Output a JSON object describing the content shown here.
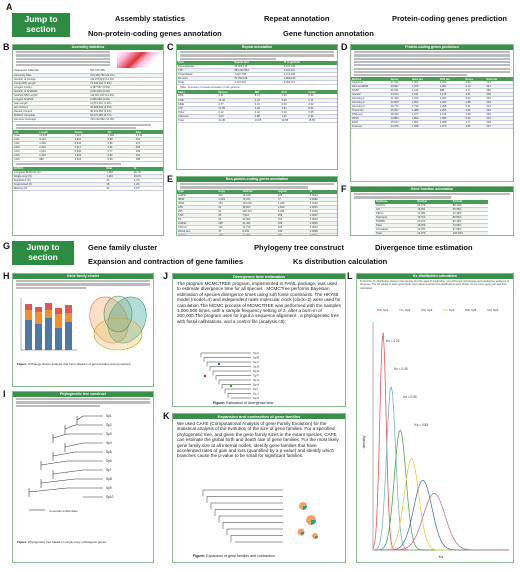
{
  "labels": {
    "A": "A",
    "B": "B",
    "C": "C",
    "D": "D",
    "E": "E",
    "F": "F",
    "G": "G",
    "H": "H",
    "I": "I",
    "J": "J",
    "K": "K",
    "L": "L"
  },
  "jump1": "Jump to section",
  "jump2": "Jump to section",
  "nav1": {
    "assembly": "Assembly statistics",
    "repeat": "Repeat annotation",
    "protein": "Protein-coding genes prediction",
    "noncoding": "Non-protein-coding genes annotation",
    "function": "Gene function annotation"
  },
  "nav2": {
    "cluster": "Gene family cluster",
    "phylo": "Phylogeny tree construct",
    "divergence": "Divergence time estimation",
    "expansion": "Expansion and contraction of gene families",
    "ks": "Ks distribution calculation"
  },
  "colors": {
    "green": "#2e8b43",
    "header": "#3a8f4a",
    "border": "#8ab98f"
  },
  "B": {
    "title": "Assembly statistics",
    "rows": [
      [
        "Sequenced Data Size",
        "931,576,465"
      ],
      [
        "Assembly Rate",
        "215,408,750 (23.1%)"
      ],
      [
        "Number of Contigs",
        "112,975,600 (12.1%)"
      ],
      [
        "Contig N50 Length",
        "72,530,010 (7.8%)"
      ],
      [
        "Longest Contig",
        "4,187,567 (0.5%)"
      ],
      [
        "Number of Scaffolds",
        "2,061,823 (0.2%)"
      ],
      [
        "Scaffold N50 Length",
        "113,467,220 (12.2%)"
      ],
      [
        "Longest Scaffold",
        "2,095,080 (0.2%)"
      ],
      [
        "Gap Length",
        "11,574,210 (1.2%)"
      ],
      [
        "GC Content",
        "32,986,539 (3.5%)"
      ],
      [
        "Repeat Content",
        "36,101,850 (3.9%)"
      ],
      [
        "BUSCO Complete",
        "81,070,080 (8.7%)"
      ],
      [
        "Genome Coverage",
        "130,120,590 (14.0%)"
      ]
    ],
    "t2": [
      [
        "Total",
        "13,958",
        "7,321",
        "1,184",
        "3,512"
      ],
      [
        "Chr1",
        "3,127",
        "4,611",
        "0.98",
        "412"
      ],
      [
        "Chr2",
        "1,890",
        "8,344",
        "0.86",
        "347"
      ],
      [
        "Chr3",
        "2,201",
        "6,117",
        "0.91",
        "298"
      ],
      [
        "Chr4",
        "1,544",
        "5,902",
        "0.77",
        "265"
      ],
      [
        "Chr5",
        "1,310",
        "7,023",
        "0.82",
        "231"
      ],
      [
        "Chr6",
        "980",
        "3,614",
        "0.69",
        "188"
      ]
    ],
    "t3": [
      [
        "Complete BUSCOs (C)",
        "1,450",
        "96.7%"
      ],
      [
        "Single-copy (S)",
        "1,410",
        "94.0%"
      ],
      [
        "Duplicated (D)",
        "40",
        "2.7%"
      ],
      [
        "Fragmented (F)",
        "18",
        "1.2%"
      ],
      [
        "Missing (M)",
        "32",
        "2.1%"
      ]
    ]
  },
  "C": {
    "title": "Repeat annotation",
    "caption": "Table: Summary of repeat annotation in the genome",
    "rows": [
      [
        "RepeatMasker",
        "29,403,179",
        "3,127,045"
      ],
      [
        "TRF",
        "384,202,551",
        "6,115,311"
      ],
      [
        "ProteinMask",
        "7,027,708",
        "1,112,045"
      ],
      [
        "De novo",
        "70,790,128",
        "2,009,443"
      ],
      [
        "Total",
        "4,127,044",
        "3,002,117"
      ]
    ],
    "rows2": [
      [
        "DNA",
        "3.11",
        "8.27",
        "1.91",
        "0.44"
      ],
      [
        "LINE",
        "16.32",
        "1.43",
        "5.30",
        "6.11"
      ],
      [
        "SINE",
        "0.77",
        "0.15",
        "0.09",
        "0.62"
      ],
      [
        "LTR",
        "21.09",
        "2.30",
        "4.81",
        "8.00"
      ],
      [
        "Other",
        "0.12",
        "0.02",
        "0.01",
        "0.05"
      ],
      [
        "Unknown",
        "2.04",
        "0.88",
        "1.46",
        "0.33"
      ],
      [
        "Total",
        "43.45",
        "13.05",
        "13.58",
        "15.55"
      ]
    ]
  },
  "D": {
    "title": "Protein-coding genes prediction",
    "rows": [
      [
        "Augustus",
        "27,112",
        "1,401",
        "1,232",
        "4.83",
        "223"
      ],
      [
        "GlimmerHMM",
        "25,907",
        "1,572",
        "1,301",
        "4.12",
        "241"
      ],
      [
        "SNAP",
        "30,221",
        "1,122",
        "988",
        "3.77",
        "250"
      ],
      [
        "Geneid",
        "24,013",
        "1,611",
        "1,175",
        "4.51",
        "238"
      ],
      [
        "Homolog 1",
        "21,440",
        "1,702",
        "1,333",
        "5.02",
        "219"
      ],
      [
        "Homolog 2",
        "22,908",
        "1,654",
        "1,290",
        "4.88",
        "225"
      ],
      [
        "Homolog 3",
        "20,771",
        "1,733",
        "1,358",
        "5.11",
        "214"
      ],
      [
        "Transcript",
        "26,002",
        "1,488",
        "1,205",
        "4.64",
        "232"
      ],
      [
        "RNA-seq",
        "28,330",
        "1,377",
        "1,144",
        "4.40",
        "236"
      ],
      [
        "PASA",
        "19,884",
        "1,802",
        "1,390",
        "5.24",
        "210"
      ],
      [
        "EVM",
        "25,517",
        "1,561",
        "1,268",
        "4.77",
        "229"
      ],
      [
        "Final set",
        "24,376",
        "1,598",
        "1,279",
        "4.82",
        "227"
      ]
    ]
  },
  "E": {
    "title": "Non-protein-coding genes annotation",
    "rows": [
      [
        "miRNA",
        "112",
        "14,128",
        "126",
        "0.0014"
      ],
      [
        "tRNA",
        "1,023",
        "79,012",
        "77",
        "0.0082"
      ],
      [
        "rRNA",
        "154",
        "191,032",
        "1,240",
        "0.0194"
      ],
      [
        "18S",
        "22",
        "39,817",
        "1,810",
        "0.0040"
      ],
      [
        "28S",
        "31",
        "102,113",
        "3,294",
        "0.0104"
      ],
      [
        "5.8S",
        "45",
        "7,012",
        "156",
        "0.0007"
      ],
      [
        "5S",
        "56",
        "42,090",
        "751",
        "0.0043"
      ],
      [
        "snRNA",
        "288",
        "31,441",
        "109",
        "0.0032"
      ],
      [
        "CD-box",
        "121",
        "12,776",
        "106",
        "0.0013"
      ],
      [
        "HACA-box",
        "47",
        "6,401",
        "136",
        "0.0006"
      ],
      [
        "splicing",
        "120",
        "12,264",
        "102",
        "0.0012"
      ]
    ]
  },
  "F": {
    "title": "Gene function annotation",
    "rows": [
      [
        "InterPro",
        "21,476",
        "88.10%"
      ],
      [
        "GO",
        "15,931",
        "65.35%"
      ],
      [
        "KEGG",
        "10,284",
        "42.19%"
      ],
      [
        "Swissprot",
        "19,720",
        "80.90%"
      ],
      [
        "TrEMBL",
        "23,514",
        "96.46%"
      ],
      [
        "Pfam",
        "18,266",
        "74.93%"
      ],
      [
        "Annotated",
        "23,780",
        "97.55%"
      ],
      [
        "Total",
        "24,376",
        "100.00%"
      ]
    ]
  },
  "H": {
    "title": "Gene family cluster",
    "caption_bold": "Figure:",
    "caption": "Orthology cluster analysis and Venn diagram of gene families among species"
  },
  "I": {
    "title": "Phylogenetic tree construct",
    "caption_bold": "Figure:",
    "caption": "Phylogenetic tree based on single-copy orthologous genes",
    "species": [
      "Sp1",
      "Sp2",
      "Sp3",
      "Sp4",
      "Sp5",
      "Sp6",
      "Sp7",
      "Sp8",
      "Sp9",
      "Sp10"
    ],
    "legend": "Uncertain subfamilies"
  },
  "J": {
    "title": "Divergence time estimation",
    "body": "The program MCMCTREE program, implemented in PAML package, was used to estimate divergence time for all species . MCMCTree performs Bayesian estimation of species divergence times using soft fossil constraints. The HKY85 model (model=4) and independent rates molecular clock (clock=2) were used for calculation.The MCMC process of MCMCTREE was performed with the samples 1,000,000 times, with a sample frequency setting of 2, after a burn-in of 200,000.The program uses for input a sequence alignment , a phylogenetic tree with fossil calibrations, and a control file (analysis.ctl):",
    "species": [
      "Sp A",
      "Sp B",
      "Sp C",
      "Sp D",
      "Sp E",
      "Sp F",
      "Sp G",
      "Sp H",
      "Sp I",
      "Sp J",
      "Sp K"
    ],
    "caption_bold": "Figure:",
    "caption": "Estimation of divergence time"
  },
  "K": {
    "title": "Expansion and contraction of gene families",
    "body": "We used CAFE (Computational Analysis of gene Family Evolution) for the statistical analysis of the evolution of the size of gene families. For a specified phylogenetic tree, and given the gene family sizes in the extant species, CAFE can estimate the global birth and death rate of gene families. For the most likely gene family size at all internal nodes, identify gene families that have accelerated rates of gain and loss (quantified by a p-value) and identify which branches cause the p-value to be small for significant families.",
    "caption_bold": "Figure:",
    "caption": "Expansion of gene families and contraction"
  },
  "L": {
    "title": "Ks distribution calculation",
    "body": "To find the Ks distribution between the species and the ages of duplication, we performed orthologous and paralogous analyses of all genes. The Ks values of each gene family were determined and Ks-distributions were drawn. Ks for every gene pair was then calculated.",
    "xlabel": "Ks",
    "ylabel": "density",
    "series": [
      {
        "name": "Sp1",
        "color": "#e15759",
        "peak": 0.22
      },
      {
        "name": "Sp2",
        "color": "#76b7b2",
        "peak": 0.4
      },
      {
        "name": "Sp3",
        "color": "#59a14f",
        "peak": 0.6
      },
      {
        "name": "Sp4",
        "color": "#edc948",
        "peak": 0.85
      },
      {
        "name": "Sp5",
        "color": "#4e79a7",
        "peak": 1.1
      },
      {
        "name": "Sp6",
        "color": "#b07aa1",
        "peak": 1.35
      }
    ],
    "peaks": [
      "Ks = 0.22",
      "Ks = 0.40",
      "Ks = 0.60",
      "Ks = 0.85"
    ]
  }
}
